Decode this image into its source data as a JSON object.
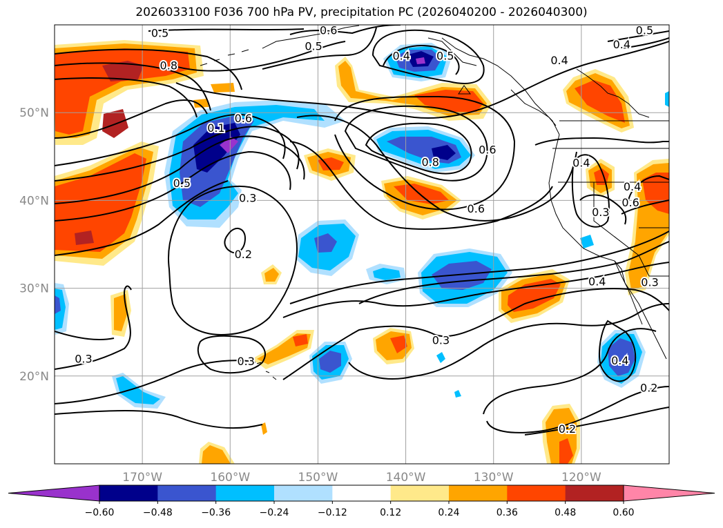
{
  "title": "2026033100 F036 700 hPa PV, precipitation PC (2026040200 - 2026040300)",
  "map": {
    "lon_range": [
      -180,
      -110
    ],
    "lat_range": [
      10,
      60
    ],
    "gridline_color": "#a0a0a0",
    "lon_ticks": [
      {
        "lon": -170,
        "label": "170°W"
      },
      {
        "lon": -160,
        "label": "160°W"
      },
      {
        "lon": -150,
        "label": "150°W"
      },
      {
        "lon": -140,
        "label": "140°W"
      },
      {
        "lon": -130,
        "label": "130°W"
      },
      {
        "lon": -120,
        "label": "120°W"
      }
    ],
    "lat_ticks": [
      {
        "lat": 50,
        "label": "50°N"
      },
      {
        "lat": 40,
        "label": "40°N"
      },
      {
        "lat": 30,
        "label": "30°N"
      },
      {
        "lat": 20,
        "label": "20°N"
      }
    ],
    "contour_labels": [
      {
        "text": "0.5",
        "lon": -168.0,
        "lat": 59.1
      },
      {
        "text": "0.6",
        "lon": -148.8,
        "lat": 59.4
      },
      {
        "text": "0.5",
        "lon": -150.5,
        "lat": 57.6
      },
      {
        "text": "0.8",
        "lon": -167.0,
        "lat": 55.4
      },
      {
        "text": "0.4",
        "lon": -140.5,
        "lat": 56.5
      },
      {
        "text": "0.5",
        "lon": -135.5,
        "lat": 56.5
      },
      {
        "text": "0.5",
        "lon": -112.8,
        "lat": 59.4
      },
      {
        "text": "0.4",
        "lon": -115.4,
        "lat": 57.8
      },
      {
        "text": "0.4",
        "lon": -122.5,
        "lat": 56.0
      },
      {
        "text": "0.1",
        "lon": -161.6,
        "lat": 48.3
      },
      {
        "text": "0.6",
        "lon": -158.5,
        "lat": 49.4
      },
      {
        "text": "0.5",
        "lon": -165.5,
        "lat": 42.0
      },
      {
        "text": "0.3",
        "lon": -158.0,
        "lat": 40.3
      },
      {
        "text": "0.8",
        "lon": -137.2,
        "lat": 44.4
      },
      {
        "text": "0.6",
        "lon": -130.7,
        "lat": 45.8
      },
      {
        "text": "0.6",
        "lon": -132.0,
        "lat": 39.1
      },
      {
        "text": "0.4",
        "lon": -120.0,
        "lat": 44.3
      },
      {
        "text": "0.3",
        "lon": -117.8,
        "lat": 38.7
      },
      {
        "text": "0.6",
        "lon": -114.4,
        "lat": 39.8
      },
      {
        "text": "0.4",
        "lon": -114.2,
        "lat": 41.6
      },
      {
        "text": "0.2",
        "lon": -158.5,
        "lat": 33.9
      },
      {
        "text": "0.4",
        "lon": -118.2,
        "lat": 30.8
      },
      {
        "text": "0.3",
        "lon": -112.2,
        "lat": 30.7
      },
      {
        "text": "0.3",
        "lon": -176.7,
        "lat": 22.0
      },
      {
        "text": "0.3",
        "lon": -158.2,
        "lat": 21.7
      },
      {
        "text": "0.3",
        "lon": -136.0,
        "lat": 24.1
      },
      {
        "text": "0.4",
        "lon": -115.6,
        "lat": 21.8
      },
      {
        "text": "0.2",
        "lon": -112.3,
        "lat": 18.7
      },
      {
        "text": "0.2",
        "lon": -121.6,
        "lat": 14.0
      }
    ]
  },
  "colorbar": {
    "ticks": [
      "−0.60",
      "−0.48",
      "−0.36",
      "−0.24",
      "−0.12",
      "0.12",
      "0.24",
      "0.36",
      "0.48",
      "0.60"
    ],
    "colors": [
      "#9932cc",
      "#00008b",
      "#3a55cf",
      "#00bfff",
      "#b0e0ff",
      "#ffffff",
      "#ffe98a",
      "#ffa500",
      "#ff4500",
      "#b22222",
      "#ff85a8"
    ]
  }
}
